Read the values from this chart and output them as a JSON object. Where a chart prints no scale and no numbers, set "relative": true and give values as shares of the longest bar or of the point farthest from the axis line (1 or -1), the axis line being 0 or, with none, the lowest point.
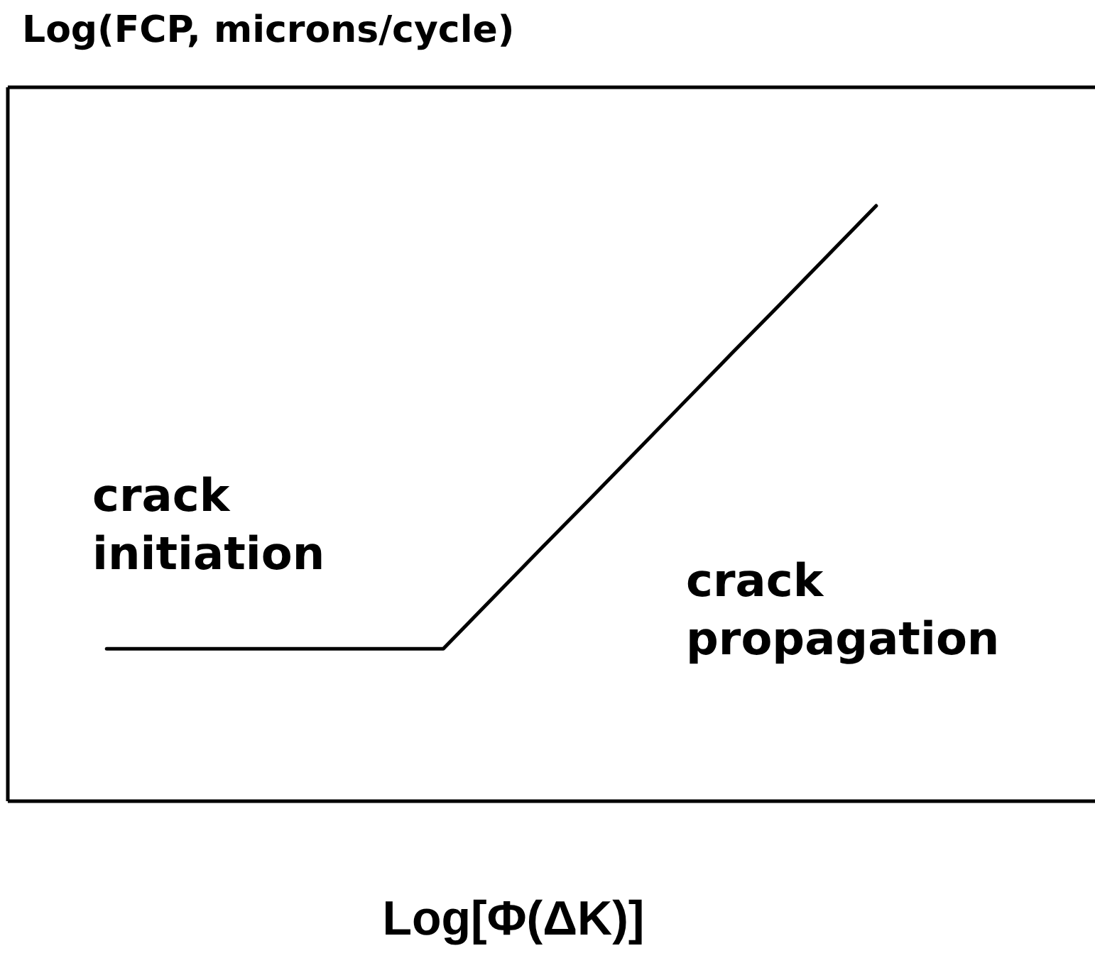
{
  "chart_data": {
    "type": "line",
    "relative": true,
    "ylabel": "Log(FCP, microns/cycle)",
    "xlabel": "Log[Φ(ΔK)]",
    "categories": [
      null,
      null,
      null,
      null,
      null,
      null,
      null,
      null,
      null,
      null,
      null,
      null,
      null,
      null,
      null,
      null,
      null
    ],
    "values": [
      0.255,
      0.255,
      0.255,
      0.255,
      0.255,
      0.255,
      0.255,
      0.255,
      0.338,
      0.421,
      0.503,
      0.586,
      0.669,
      0.752,
      0.834,
      0.917,
      1
    ],
    "color": "#000000",
    "tick_labels": false,
    "annotations": [
      "crack\ninitiation",
      "crack\npropagation"
    ]
  }
}
